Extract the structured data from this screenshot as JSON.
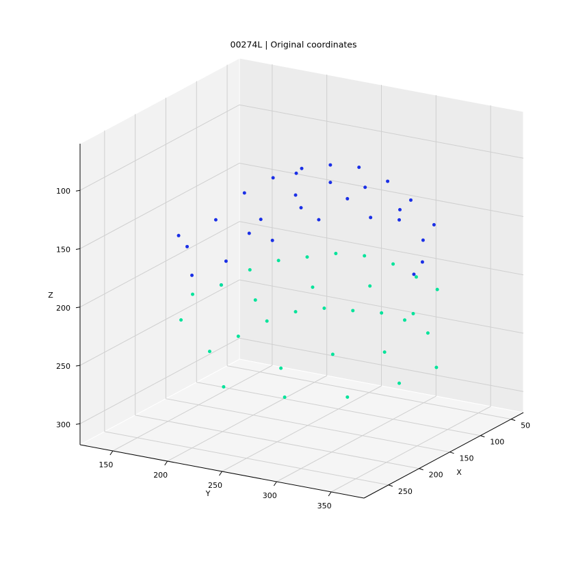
{
  "chart_data": {
    "type": "scatter3d",
    "title": "00274L | Original coordinates",
    "xlabel": "X",
    "ylabel": "Y",
    "zlabel": "Z",
    "xlim": [
      30,
      290
    ],
    "ylim": [
      120,
      380
    ],
    "zlim": [
      60,
      318
    ],
    "z_inverted": true,
    "xticks": [
      50,
      100,
      150,
      200,
      250
    ],
    "yticks": [
      150,
      200,
      250,
      300,
      350
    ],
    "zticks": [
      100,
      150,
      200,
      250,
      300
    ],
    "grid": true,
    "series": [
      {
        "color": "#1a2fe6",
        "x": [
          240,
          220,
          200,
          180,
          160,
          140,
          120,
          100,
          80,
          60,
          230,
          200,
          170,
          140,
          110,
          80,
          60,
          250,
          210,
          170,
          130,
          90,
          70,
          220,
          190,
          150,
          110,
          75,
          245,
          160
        ],
        "y": [
          190,
          205,
          220,
          235,
          250,
          265,
          280,
          295,
          305,
          315,
          220,
          235,
          250,
          265,
          280,
          295,
          305,
          200,
          230,
          255,
          275,
          300,
          310,
          210,
          240,
          260,
          285,
          305,
          185,
          245
        ],
        "z": [
          150,
          130,
          110,
          100,
          95,
          95,
          100,
          115,
          135,
          160,
          160,
          130,
          115,
          110,
          120,
          145,
          175,
          170,
          140,
          125,
          125,
          150,
          190,
          185,
          150,
          140,
          145,
          200,
          140,
          100
        ]
      },
      {
        "color": "#00e39a",
        "x": [
          240,
          220,
          200,
          180,
          160,
          140,
          120,
          100,
          80,
          60,
          230,
          210,
          190,
          170,
          150,
          130,
          110,
          90,
          70,
          250,
          200,
          160,
          120,
          85,
          225,
          185,
          145,
          105,
          65,
          170,
          130,
          90
        ],
        "y": [
          195,
          210,
          225,
          240,
          255,
          270,
          285,
          300,
          310,
          318,
          205,
          220,
          235,
          250,
          265,
          280,
          295,
          305,
          315,
          190,
          230,
          260,
          290,
          310,
          215,
          245,
          270,
          295,
          320,
          240,
          275,
          300
        ],
        "z": [
          190,
          185,
          175,
          170,
          170,
          170,
          175,
          185,
          200,
          215,
          240,
          230,
          220,
          215,
          215,
          220,
          225,
          235,
          250,
          210,
          200,
          195,
          200,
          230,
          270,
          260,
          255,
          260,
          280,
          290,
          295,
          290
        ]
      }
    ]
  }
}
